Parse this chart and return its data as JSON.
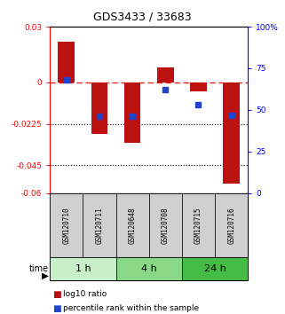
{
  "title": "GDS3433 / 33683",
  "samples": [
    "GSM120710",
    "GSM120711",
    "GSM120648",
    "GSM120708",
    "GSM120715",
    "GSM120716"
  ],
  "log10_ratio": [
    0.022,
    -0.028,
    -0.033,
    0.008,
    -0.005,
    -0.055
  ],
  "percentile_rank": [
    68,
    46,
    46,
    62,
    53,
    47
  ],
  "time_groups": [
    {
      "label": "1 h",
      "samples": [
        0,
        1
      ],
      "color": "#c8f0c8"
    },
    {
      "label": "4 h",
      "samples": [
        2,
        3
      ],
      "color": "#88d888"
    },
    {
      "label": "24 h",
      "samples": [
        4,
        5
      ],
      "color": "#44bb44"
    }
  ],
  "ylim_left": [
    -0.06,
    0.03
  ],
  "ylim_right": [
    0,
    100
  ],
  "yticks_left": [
    0.03,
    0,
    -0.0225,
    -0.045,
    -0.06
  ],
  "ytick_labels_left": [
    "0.03",
    "0",
    "-0.0225",
    "-0.045",
    "-0.06"
  ],
  "yticks_right": [
    100,
    75,
    50,
    25,
    0
  ],
  "ytick_labels_right": [
    "100%",
    "75",
    "50",
    "25",
    "0"
  ],
  "bar_color": "#bb1111",
  "dot_color": "#2244cc",
  "bar_width": 0.5,
  "legend_bar_label": "log10 ratio",
  "legend_dot_label": "percentile rank within the sample"
}
